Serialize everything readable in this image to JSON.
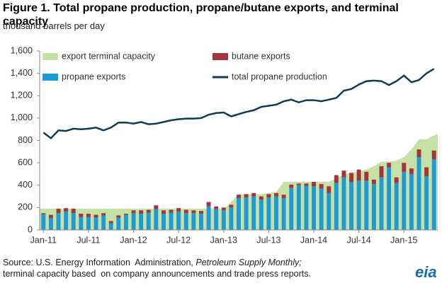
{
  "chart_data": {
    "type": "combo",
    "title": "Figure 1. Total propane production, propane/butane exports, and terminal capacity",
    "subtitle": "thousand barrels per day",
    "categories": [
      "Jan-11",
      null,
      null,
      null,
      null,
      null,
      "Jul-11",
      null,
      null,
      null,
      null,
      null,
      "Jan-12",
      null,
      null,
      null,
      null,
      null,
      "Jul-12",
      null,
      null,
      null,
      null,
      null,
      "Jan-13",
      null,
      null,
      null,
      null,
      null,
      "Jul-13",
      null,
      null,
      null,
      null,
      null,
      "Jan-14",
      null,
      null,
      null,
      null,
      null,
      "Jul-14",
      null,
      null,
      null,
      null,
      null,
      "Jan-15",
      null,
      null,
      null,
      null
    ],
    "ylim": [
      0,
      1600
    ],
    "yticks": [
      0,
      200,
      400,
      600,
      800,
      {
        "value": 1000,
        "label": "1,000"
      },
      {
        "value": 1200,
        "label": "1,200"
      },
      {
        "value": 1400,
        "label": "1,400"
      },
      {
        "value": 1600,
        "label": "1,600"
      }
    ],
    "legend": "top",
    "series": [
      {
        "name": "export terminal capacity",
        "color": "#c4e2a5",
        "kind": "area",
        "values": [
          190,
          190,
          190,
          190,
          190,
          190,
          190,
          190,
          190,
          190,
          190,
          190,
          190,
          190,
          190,
          190,
          190,
          190,
          190,
          190,
          190,
          190,
          190,
          190,
          190,
          250,
          320,
          320,
          320,
          320,
          330,
          340,
          430,
          430,
          430,
          430,
          430,
          430,
          430,
          460,
          500,
          510,
          520,
          540,
          570,
          610,
          610,
          620,
          650,
          720,
          810,
          810,
          860
        ]
      },
      {
        "name": "butane exports",
        "color": "#a6343c",
        "kind": "stacked_bar",
        "values": [
          10,
          30,
          40,
          30,
          40,
          30,
          30,
          25,
          20,
          20,
          20,
          10,
          25,
          30,
          25,
          35,
          30,
          25,
          30,
          30,
          25,
          25,
          40,
          25,
          25,
          25,
          30,
          30,
          30,
          30,
          30,
          30,
          30,
          30,
          15,
          20,
          40,
          40,
          60,
          70,
          60,
          80,
          100,
          80,
          40,
          100,
          40,
          50,
          80,
          50,
          70,
          80,
          80
        ]
      },
      {
        "name": "propane exports",
        "color": "#1f9ad6",
        "kind": "bar",
        "values": [
          140,
          105,
          150,
          165,
          150,
          115,
          115,
          110,
          130,
          60,
          110,
          135,
          150,
          145,
          155,
          185,
          145,
          155,
          165,
          150,
          150,
          145,
          210,
          185,
          175,
          200,
          285,
          290,
          300,
          270,
          290,
          300,
          285,
          375,
          400,
          395,
          390,
          370,
          330,
          420,
          470,
          430,
          440,
          440,
          410,
          470,
          560,
          420,
          520,
          500,
          650,
          480,
          630
        ]
      },
      {
        "name": "total propane production",
        "color": "#0e3b54",
        "kind": "line",
        "values": [
          870,
          820,
          890,
          885,
          905,
          900,
          905,
          915,
          890,
          915,
          960,
          960,
          950,
          965,
          945,
          950,
          965,
          980,
          990,
          995,
          995,
          1000,
          1030,
          1045,
          1050,
          1015,
          1035,
          1055,
          1070,
          1100,
          1110,
          1120,
          1150,
          1165,
          1140,
          1160,
          1160,
          1150,
          1165,
          1180,
          1245,
          1260,
          1300,
          1330,
          1335,
          1330,
          1295,
          1330,
          1380,
          1320,
          1340,
          1400,
          1440
        ]
      }
    ],
    "source_line1": "Source: U.S. Energy Information  Administration, ",
    "source_italic": "Petroleum Supply Monthly;",
    "source_line2": "terminal capacity based  on company announcements and trade press reports.",
    "logo_text": "eia"
  }
}
